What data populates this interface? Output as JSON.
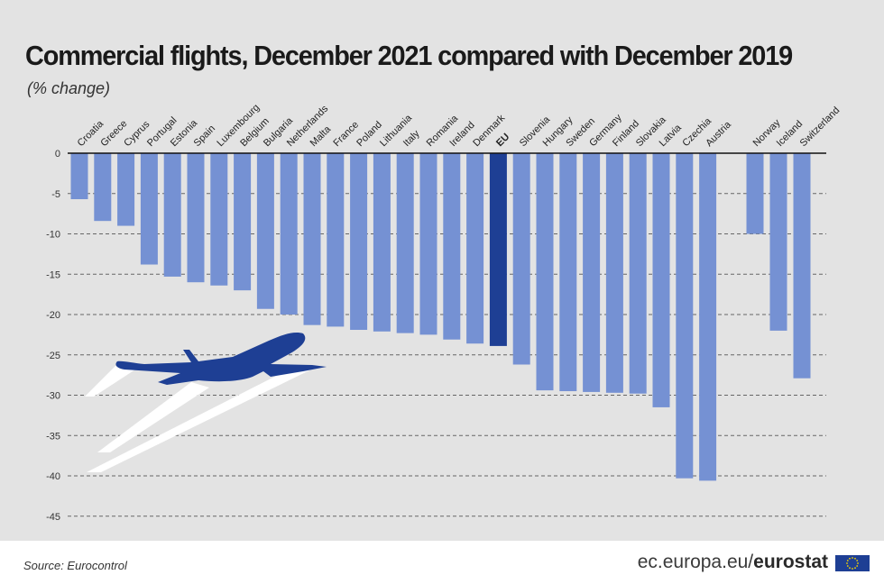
{
  "title": "Commercial flights, December 2021 compared with December 2019",
  "subtitle": "(% change)",
  "source": "Source: Eurocontrol",
  "brand": {
    "domain": "ec.europa.eu/",
    "name": "eurostat"
  },
  "colors": {
    "bar": "#7591d3",
    "highlight": "#1e3f94",
    "plane": "#1e3f94",
    "background": "#e3e3e3"
  },
  "icons": [
    "airplane-icon",
    "eu-flag-icon"
  ],
  "chart_data": {
    "type": "bar",
    "categories": [
      "Croatia",
      "Greece",
      "Cyprus",
      "Portugal",
      "Estonia",
      "Spain",
      "Luxembourg",
      "Belgium",
      "Bulgaria",
      "Netherlands",
      "Malta",
      "France",
      "Poland",
      "Lithuania",
      "Italy",
      "Romania",
      "Ireland",
      "Denmark",
      "EU",
      "Slovenia",
      "Hungary",
      "Sweden",
      "Germany",
      "Finland",
      "Slovakia",
      "Latvia",
      "Czechia",
      "Austria",
      "Norway",
      "Iceland",
      "Switzerland"
    ],
    "values": [
      -5.7,
      -8.4,
      -9.0,
      -13.8,
      -15.3,
      -16.0,
      -16.4,
      -17.0,
      -19.3,
      -20.0,
      -21.3,
      -21.5,
      -21.9,
      -22.1,
      -22.3,
      -22.5,
      -23.1,
      -23.6,
      -23.9,
      -26.2,
      -29.4,
      -29.5,
      -29.6,
      -29.7,
      -29.8,
      -31.5,
      -40.3,
      -40.6,
      -10.0,
      -22.0,
      -27.9
    ],
    "highlight": "EU",
    "ylim": [
      -45,
      0
    ],
    "yticks": [
      0,
      -5,
      -10,
      -15,
      -20,
      -25,
      -30,
      -35,
      -40,
      -45
    ],
    "grid": true
  }
}
